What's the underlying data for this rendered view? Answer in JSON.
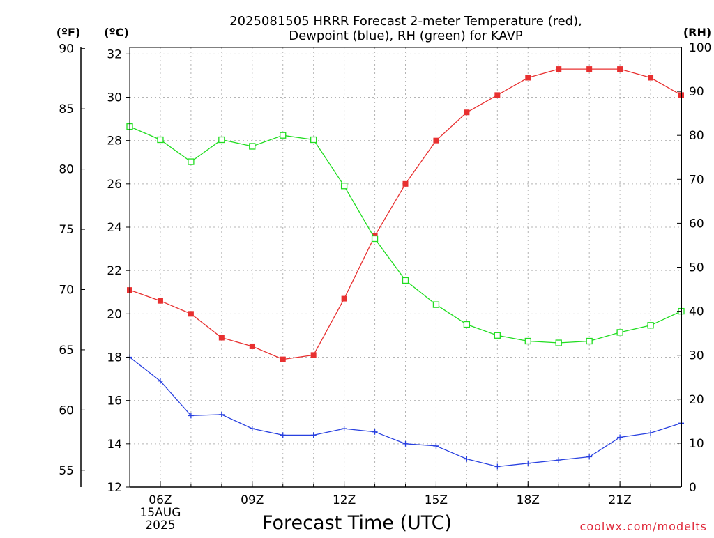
{
  "chart_data": {
    "type": "line",
    "title_lines": [
      "2025081505 HRRR Forecast 2-meter Temperature (red),",
      "Dewpoint (blue), RH (green) for KAVP"
    ],
    "xlabel": "Forecast Time (UTC)",
    "x_hours": [
      5,
      6,
      7,
      8,
      9,
      10,
      11,
      12,
      13,
      14,
      15,
      16,
      17,
      18,
      19,
      20,
      21,
      22,
      23
    ],
    "x_ticks": [
      {
        "hour": 6,
        "lines": [
          "06Z",
          "15AUG",
          "2025"
        ]
      },
      {
        "hour": 9,
        "lines": [
          "09Z"
        ]
      },
      {
        "hour": 12,
        "lines": [
          "12Z"
        ]
      },
      {
        "hour": 15,
        "lines": [
          "15Z"
        ]
      },
      {
        "hour": 18,
        "lines": [
          "18Z"
        ]
      },
      {
        "hour": 21,
        "lines": [
          "21Z"
        ]
      }
    ],
    "xlim": [
      5,
      23
    ],
    "axes": {
      "celsius": {
        "unit": "(ºC)",
        "ylim": [
          12,
          32.3
        ],
        "ticks": [
          12,
          14,
          16,
          18,
          20,
          22,
          24,
          26,
          28,
          30,
          32
        ]
      },
      "fahrenheit": {
        "unit": "(ºF)",
        "ylim": [
          53.6,
          90.1
        ],
        "ticks": [
          55,
          60,
          65,
          70,
          75,
          80,
          85,
          90
        ]
      },
      "rh": {
        "unit": "(RH)",
        "ylim": [
          0,
          100
        ],
        "ticks": [
          0,
          10,
          20,
          30,
          40,
          50,
          60,
          70,
          80,
          90,
          100
        ]
      }
    },
    "grid": true,
    "series": [
      {
        "name": "Temperature",
        "axis": "celsius",
        "color": "#e83030",
        "marker": "filled-square",
        "values": [
          21.1,
          20.6,
          20.0,
          18.9,
          18.5,
          17.9,
          18.1,
          20.7,
          23.6,
          26.0,
          28.0,
          29.3,
          30.1,
          30.9,
          31.3,
          31.3,
          31.3,
          30.9,
          30.1
        ]
      },
      {
        "name": "Dewpoint",
        "axis": "celsius",
        "color": "#2840e0",
        "marker": "plus",
        "values": [
          18.0,
          16.9,
          15.3,
          15.35,
          14.7,
          14.4,
          14.4,
          14.7,
          14.55,
          14.0,
          13.9,
          13.3,
          12.95,
          13.1,
          13.25,
          13.4,
          14.3,
          14.5,
          14.95
        ]
      },
      {
        "name": "RH",
        "axis": "rh",
        "color": "#20dd20",
        "marker": "open-square",
        "values": [
          82,
          79,
          74,
          79,
          77.5,
          80,
          79,
          68.5,
          56.5,
          47,
          41.5,
          37,
          34.5,
          33.2,
          32.8,
          33.2,
          35.2,
          36.8,
          40
        ]
      }
    ],
    "credit": "coolwx.com/modelts"
  }
}
